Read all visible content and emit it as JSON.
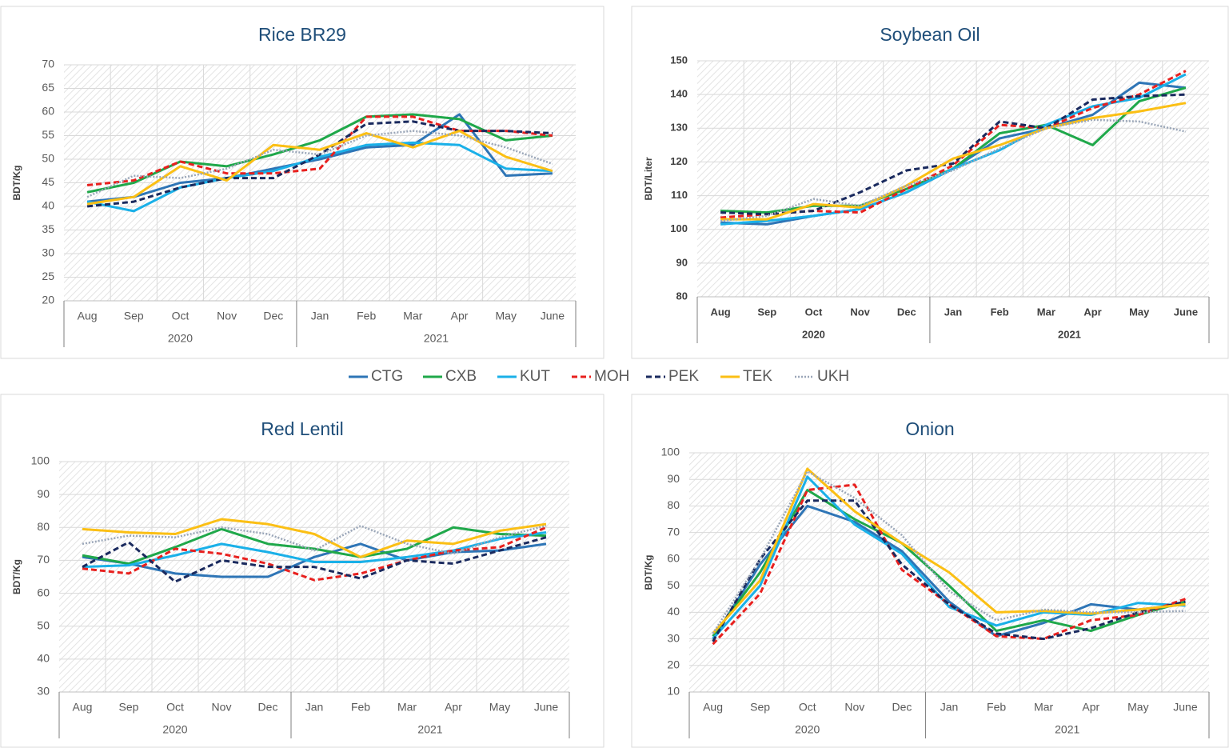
{
  "chart_data": [
    {
      "type": "line",
      "title": "Rice BR29",
      "y_label": "BDT/Kg",
      "category_groups": [
        {
          "name": "2020",
          "categories": [
            "Aug",
            "Sep",
            "Oct",
            "Nov",
            "Dec"
          ]
        },
        {
          "name": "2021",
          "categories": [
            "Jan",
            "Feb",
            "Mar",
            "Apr",
            "May",
            "June"
          ]
        }
      ],
      "ylim": [
        20,
        70
      ],
      "yticks": [
        20,
        25,
        30,
        35,
        40,
        45,
        50,
        55,
        60,
        65,
        70
      ],
      "grid": true,
      "series": [
        {
          "values": [
            41,
            42,
            45,
            46,
            48,
            50,
            52.5,
            53,
            59.5,
            46.5,
            47
          ]
        },
        {
          "values": [
            43,
            45,
            49.5,
            48.5,
            51,
            54,
            59,
            59.5,
            58.5,
            54,
            55
          ]
        },
        {
          "values": [
            41,
            39,
            44,
            46,
            47.5,
            50.5,
            53,
            53.5,
            53,
            48,
            47.5
          ]
        },
        {
          "values": [
            44.5,
            45.5,
            49.5,
            47,
            47,
            48,
            59,
            59,
            56,
            56,
            55
          ]
        },
        {
          "values": [
            40,
            41,
            44,
            46,
            46,
            51,
            57.5,
            58,
            56,
            56,
            55.5
          ]
        },
        {
          "values": [
            40.5,
            42,
            48.5,
            45.5,
            53,
            52,
            55.5,
            52.5,
            56,
            50.5,
            47.5
          ]
        },
        {
          "values": [
            42,
            46.5,
            46,
            48,
            52,
            51,
            55,
            56,
            55,
            52.5,
            49
          ]
        }
      ]
    },
    {
      "type": "line",
      "title": "Soybean Oil",
      "y_label": "BDT/Liter",
      "category_groups": [
        {
          "name": "2020",
          "categories": [
            "Aug",
            "Sep",
            "Oct",
            "Nov",
            "Dec"
          ]
        },
        {
          "name": "2021",
          "categories": [
            "Jan",
            "Feb",
            "Mar",
            "Apr",
            "May",
            "June"
          ]
        }
      ],
      "ylim": [
        80,
        150
      ],
      "yticks": [
        80,
        90,
        100,
        110,
        120,
        130,
        140,
        150
      ],
      "grid": true,
      "series": [
        {
          "values": [
            102,
            101.5,
            104,
            106,
            111,
            118,
            127,
            130,
            134,
            143.5,
            142
          ]
        },
        {
          "values": [
            105.5,
            105,
            107,
            107,
            112,
            118,
            128.5,
            131,
            125,
            138,
            142
          ]
        },
        {
          "values": [
            101.5,
            102.5,
            104,
            106,
            111,
            118,
            123.5,
            131,
            136.5,
            139,
            146
          ]
        },
        {
          "values": [
            103.5,
            104.5,
            105.5,
            105,
            112,
            119,
            131,
            130,
            136,
            140,
            147
          ]
        },
        {
          "values": [
            105,
            104.5,
            105.5,
            111,
            117.5,
            119.5,
            132,
            130,
            138.5,
            139.5,
            140
          ]
        },
        {
          "values": [
            103,
            103,
            107.5,
            106.5,
            113,
            121,
            125,
            130,
            133,
            135,
            137.5
          ]
        },
        {
          "values": [
            102.5,
            104,
            109,
            107,
            113,
            117.5,
            124,
            130,
            132.5,
            132,
            129
          ]
        }
      ]
    },
    {
      "type": "line",
      "title": "Red Lentil",
      "y_label": "BDT/Kg",
      "category_groups": [
        {
          "name": "2020",
          "categories": [
            "Aug",
            "Sep",
            "Oct",
            "Nov",
            "Dec"
          ]
        },
        {
          "name": "2021",
          "categories": [
            "Jan",
            "Feb",
            "Mar",
            "Apr",
            "May",
            "June"
          ]
        }
      ],
      "ylim": [
        30,
        100
      ],
      "yticks": [
        30,
        40,
        50,
        60,
        70,
        80,
        90,
        100
      ],
      "grid": true,
      "series": [
        {
          "values": [
            71,
            69,
            66,
            65,
            65,
            71,
            75,
            70,
            72.5,
            73,
            75
          ]
        },
        {
          "values": [
            71.5,
            69,
            74,
            79.5,
            75,
            73.5,
            71,
            73.5,
            80,
            78,
            77.5
          ]
        },
        {
          "values": [
            68,
            68.5,
            71.5,
            75,
            72.5,
            69.5,
            69.5,
            71,
            73,
            76.5,
            78.5
          ]
        },
        {
          "values": [
            67.5,
            66,
            73.5,
            72,
            69,
            64,
            66,
            70,
            73,
            74,
            80
          ]
        },
        {
          "values": [
            68,
            75.5,
            63.5,
            70,
            68,
            68,
            64.5,
            70,
            69,
            73,
            77
          ]
        },
        {
          "values": [
            79.5,
            78.5,
            78,
            82.5,
            81,
            78,
            71,
            76,
            75,
            79,
            81
          ]
        },
        {
          "values": [
            75,
            77.5,
            77,
            80,
            78,
            73,
            80.5,
            75,
            72,
            77,
            80.5
          ]
        }
      ]
    },
    {
      "type": "line",
      "title": "Onion",
      "y_label": "BDT/Kg",
      "category_groups": [
        {
          "name": "2020",
          "categories": [
            "Aug",
            "Sep",
            "Oct",
            "Nov",
            "Dec"
          ]
        },
        {
          "name": "2021",
          "categories": [
            "Jan",
            "Feb",
            "Mar",
            "Apr",
            "May",
            "June"
          ]
        }
      ],
      "ylim": [
        10,
        100
      ],
      "yticks": [
        10,
        20,
        30,
        40,
        50,
        60,
        70,
        80,
        90,
        100
      ],
      "grid": true,
      "series": [
        {
          "values": [
            30,
            58,
            80,
            74,
            63,
            44,
            31,
            36,
            43,
            41,
            43
          ]
        },
        {
          "values": [
            31,
            55,
            86,
            75,
            66,
            50,
            33,
            37,
            33,
            39,
            44
          ]
        },
        {
          "values": [
            30,
            50,
            91,
            73,
            62,
            42,
            35,
            40,
            39,
            43.5,
            42.5
          ]
        },
        {
          "values": [
            28,
            47,
            86,
            88,
            56,
            43,
            31,
            30,
            37,
            39,
            45
          ]
        },
        {
          "values": [
            29,
            60,
            82,
            82,
            58,
            43,
            32,
            30,
            34,
            40,
            44
          ]
        },
        {
          "values": [
            32,
            52,
            94,
            78,
            66,
            55,
            40,
            40.5,
            39.5,
            41,
            43
          ]
        },
        {
          "values": [
            32,
            60,
            93,
            83,
            69,
            48,
            37,
            41,
            40,
            40,
            40.5
          ]
        }
      ]
    }
  ],
  "legend": {
    "series": [
      {
        "name": "CTG",
        "color": "#2e75b6",
        "dash": "solid"
      },
      {
        "name": "CXB",
        "color": "#1fa84a",
        "dash": "solid"
      },
      {
        "name": "KUT",
        "color": "#1ab0e8",
        "dash": "solid"
      },
      {
        "name": "MOH",
        "color": "#e8201e",
        "dash": "dash"
      },
      {
        "name": "PEK",
        "color": "#1a2a5e",
        "dash": "dash"
      },
      {
        "name": "TEK",
        "color": "#fbbf14",
        "dash": "solid"
      },
      {
        "name": "UKH",
        "color": "#9aa6b8",
        "dash": "dot"
      }
    ]
  }
}
